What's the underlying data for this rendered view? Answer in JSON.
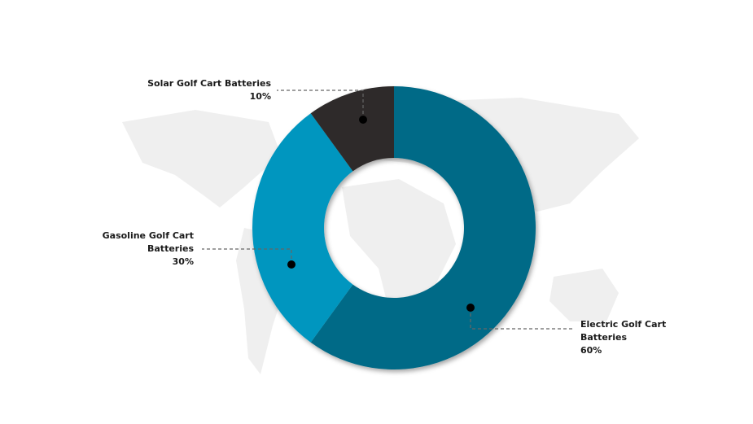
{
  "chart_data": {
    "type": "donut",
    "categories": [
      "Electric Golf Cart Batteries",
      "Gasoline Golf Cart Batteries",
      "Solar Golf Cart Batteries"
    ],
    "values": [
      60,
      30,
      10
    ],
    "value_labels": [
      "60%",
      "30%",
      "10%"
    ],
    "colors": [
      "#006a87",
      "#0096bf",
      "#2e2c2a"
    ]
  }
}
